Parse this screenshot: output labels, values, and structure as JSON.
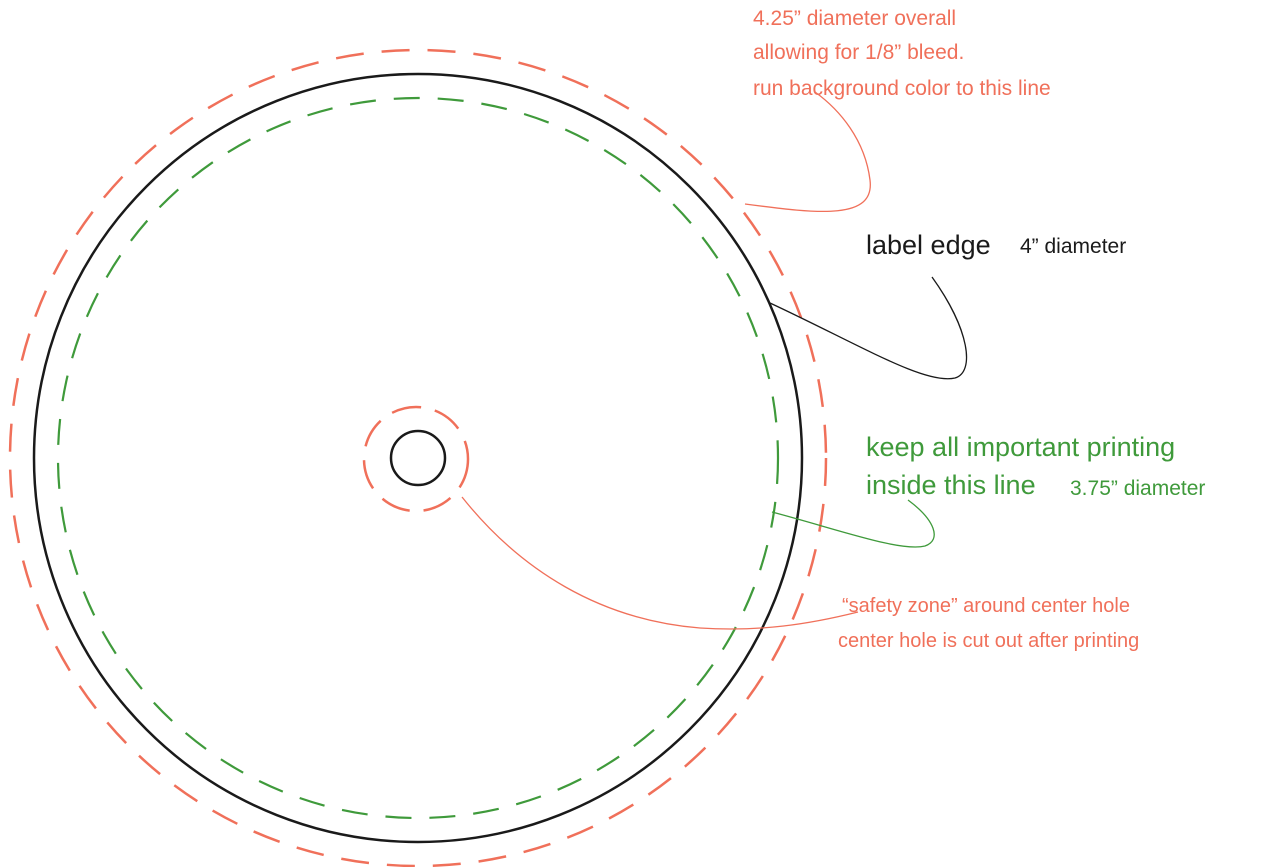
{
  "colors": {
    "bleed": "#f0705a",
    "label_edge": "#1a1a1a",
    "safe_area": "#3f9a3b",
    "safety_zone": "#f0705a"
  },
  "annotations": {
    "bleed": {
      "line1": "4.25” diameter overall",
      "line2": "allowing for 1/8” bleed.",
      "line3": "run background color to this line"
    },
    "label_edge": {
      "text": "label edge",
      "size": "4” diameter"
    },
    "safe_area": {
      "line1": "keep all important printing",
      "line2": "inside this line",
      "size": "3.75” diameter"
    },
    "center_hole": {
      "line1": "“safety zone” around center hole",
      "line2": "center hole is cut out after printing"
    }
  }
}
